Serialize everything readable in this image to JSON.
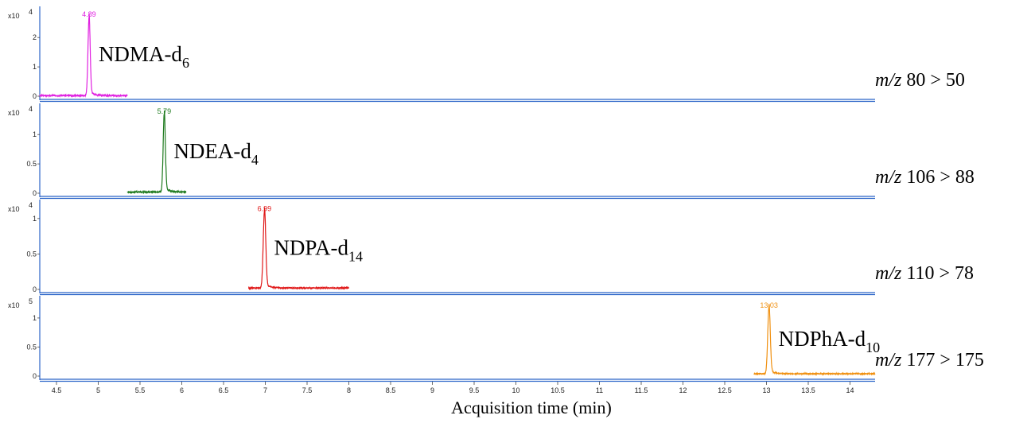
{
  "chart_data": {
    "type": "line",
    "xlabel": "Acquisition time (min)",
    "xlim": [
      4.3,
      14.3
    ],
    "x_ticks": [
      "4.5",
      "5",
      "5.5",
      "6",
      "6.5",
      "7",
      "7.5",
      "8",
      "8.5",
      "9",
      "9.5",
      "10",
      "10.5",
      "11",
      "11.5",
      "12",
      "12.5",
      "13",
      "13.5",
      "14"
    ],
    "panels": [
      {
        "compound": "NDMA-d",
        "compound_sub": "6",
        "transition_prefix": "m/z",
        "transition": " 80 > 50",
        "multiplier_base": "x10",
        "multiplier_exp": "4",
        "y_ticks": [
          "0",
          "1",
          "2"
        ],
        "y_tick_values": [
          0,
          1,
          2
        ],
        "ymax": 2.9,
        "color": "#e020e0",
        "peak_label": "4.89",
        "peak_rt": 4.89,
        "peak_height": 2.65,
        "peak_width": 0.013,
        "trace_range": [
          4.3,
          5.35
        ],
        "baseline": 0.02
      },
      {
        "compound": "NDEA-d",
        "compound_sub": "4",
        "transition_prefix": "m/z",
        "transition": " 106 > 88",
        "multiplier_base": "x10",
        "multiplier_exp": "4",
        "y_ticks": [
          "0",
          "0.5",
          "1"
        ],
        "y_tick_values": [
          0,
          0.5,
          1
        ],
        "ymax": 1.45,
        "color": "#1e7a1e",
        "peak_label": "5.79",
        "peak_rt": 5.79,
        "peak_height": 1.33,
        "peak_width": 0.013,
        "trace_range": [
          5.35,
          6.05
        ],
        "baseline": 0.02
      },
      {
        "compound": "NDPA-d",
        "compound_sub": "14",
        "transition_prefix": "m/z",
        "transition": " 110 > 78",
        "multiplier_base": "x10",
        "multiplier_exp": "4",
        "y_ticks": [
          "0",
          "0.5",
          "1"
        ],
        "y_tick_values": [
          0,
          0.5,
          1
        ],
        "ymax": 1.2,
        "color": "#e01818",
        "peak_label": "6.99",
        "peak_rt": 6.99,
        "peak_height": 1.08,
        "peak_width": 0.015,
        "trace_range": [
          6.8,
          8.0
        ],
        "baseline": 0.02
      },
      {
        "compound": "NDPhA-d",
        "compound_sub": "10",
        "transition_prefix": "m/z",
        "transition": " 177 > 175",
        "multiplier_base": "x10",
        "multiplier_exp": "5",
        "y_ticks": [
          "0",
          "0.5",
          "1"
        ],
        "y_tick_values": [
          0,
          0.5,
          1
        ],
        "ymax": 1.3,
        "color": "#f09010",
        "peak_label": "13.03",
        "peak_rt": 13.03,
        "peak_height": 1.15,
        "peak_width": 0.015,
        "trace_range": [
          12.85,
          14.3
        ],
        "baseline": 0.04
      }
    ]
  }
}
